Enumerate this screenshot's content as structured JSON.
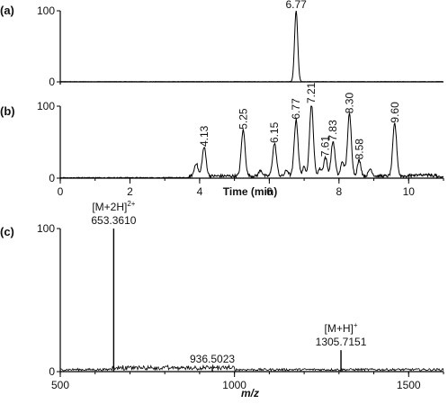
{
  "chart_data": [
    {
      "id": "a",
      "type": "line",
      "panel_label": "(a)",
      "x_range": [
        0,
        11
      ],
      "y_range": [
        0,
        100
      ],
      "y_ticks": [
        "0",
        "100"
      ],
      "peaks": [
        {
          "x": 6.77,
          "height": 100,
          "label": "6.77"
        }
      ]
    },
    {
      "id": "b",
      "type": "line",
      "panel_label": "(b)",
      "xlabel": "Time (min)",
      "x_range": [
        0,
        11
      ],
      "y_range": [
        0,
        100
      ],
      "x_ticks": [
        "0",
        "2",
        "4",
        "6",
        "8",
        "10"
      ],
      "y_ticks": [
        "0",
        "100"
      ],
      "peaks": [
        {
          "x": 3.9,
          "height": 18,
          "label": ""
        },
        {
          "x": 4.13,
          "height": 40,
          "label": "4.13"
        },
        {
          "x": 5.25,
          "height": 64,
          "label": "5.25"
        },
        {
          "x": 5.75,
          "height": 8,
          "label": ""
        },
        {
          "x": 6.15,
          "height": 45,
          "label": "6.15"
        },
        {
          "x": 6.5,
          "height": 8,
          "label": ""
        },
        {
          "x": 6.77,
          "height": 78,
          "label": "6.77"
        },
        {
          "x": 7.0,
          "height": 12,
          "label": ""
        },
        {
          "x": 7.21,
          "height": 100,
          "label": "7.21"
        },
        {
          "x": 7.45,
          "height": 10,
          "label": ""
        },
        {
          "x": 7.61,
          "height": 26,
          "label": "7.61"
        },
        {
          "x": 7.83,
          "height": 48,
          "label": "7.83"
        },
        {
          "x": 8.1,
          "height": 20,
          "label": ""
        },
        {
          "x": 8.3,
          "height": 86,
          "label": "8.30"
        },
        {
          "x": 8.58,
          "height": 22,
          "label": "8.58"
        },
        {
          "x": 8.9,
          "height": 10,
          "label": ""
        },
        {
          "x": 9.6,
          "height": 73,
          "label": "9.60"
        }
      ]
    },
    {
      "id": "c",
      "type": "line",
      "panel_label": "(c)",
      "xlabel": "m/z",
      "x_range": [
        500,
        1600
      ],
      "y_range": [
        0,
        100
      ],
      "x_ticks": [
        "500",
        "1000",
        "1500"
      ],
      "y_ticks": [
        "0",
        "100"
      ],
      "peaks": [
        {
          "x": 653.361,
          "height": 100,
          "label_main": "[M+2H]",
          "label_sup": "2+",
          "label_value": "653.3610"
        },
        {
          "x": 936.5023,
          "height": 3,
          "label_value": "936.5023"
        },
        {
          "x": 1305.7151,
          "height": 15,
          "label_main": "[M+H]",
          "label_sup": "+",
          "label_value": "1305.7151"
        }
      ]
    }
  ]
}
